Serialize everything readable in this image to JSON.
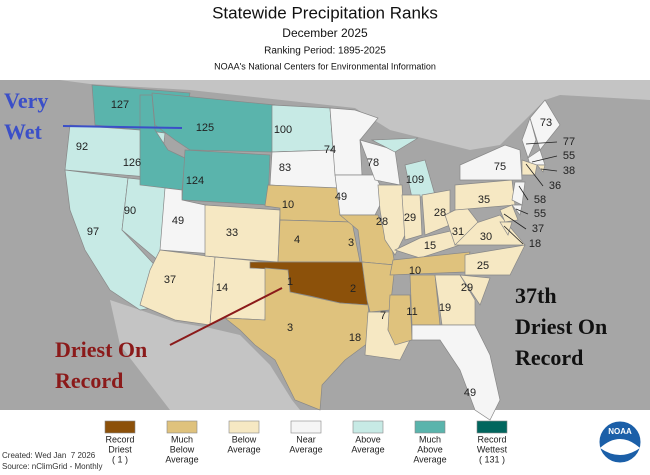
{
  "header": {
    "title": "Statewide Precipitation Ranks",
    "subtitle": "December 2025",
    "period": "Ranking Period: 1895-2025",
    "source": "NOAA's National Centers for Environmental Information"
  },
  "states": [
    {
      "rank": 127,
      "color": "#5ab4ac"
    },
    {
      "rank": 92,
      "color": "#c7eae5"
    },
    {
      "rank": 97,
      "color": "#c7eae5"
    },
    {
      "rank": 90,
      "color": "#c7eae5"
    },
    {
      "rank": 126,
      "color": "#5ab4ac"
    },
    {
      "rank": 125,
      "color": "#5ab4ac"
    },
    {
      "rank": 124,
      "color": "#5ab4ac"
    },
    {
      "rank": 49,
      "color": "#f5f5f5"
    },
    {
      "rank": 37,
      "color": "#f6e8c3"
    },
    {
      "rank": 33,
      "color": "#f6e8c3"
    },
    {
      "rank": 14,
      "color": "#f6e8c3"
    },
    {
      "rank": 100,
      "color": "#c7eae5"
    },
    {
      "rank": 83,
      "color": "#f5f5f5"
    },
    {
      "rank": 10,
      "color": "#dfc27d"
    },
    {
      "rank": 4,
      "color": "#dfc27d"
    },
    {
      "rank": 1,
      "color": "#8c510a"
    },
    {
      "rank": 3,
      "color": "#dfc27d"
    },
    {
      "rank": 74,
      "color": "#f5f5f5"
    },
    {
      "rank": 49,
      "color": "#f5f5f5"
    },
    {
      "rank": 3,
      "color": "#dfc27d"
    },
    {
      "rank": 2,
      "color": "#dfc27d"
    },
    {
      "rank": 18,
      "color": "#f6e8c3"
    },
    {
      "rank": 78,
      "color": "#f5f5f5"
    },
    {
      "rank": 28,
      "color": "#f6e8c3"
    },
    {
      "rank": 7,
      "color": "#dfc27d"
    },
    {
      "rank": 109,
      "color": "#c7eae5"
    },
    {
      "rank": 29,
      "color": "#f6e8c3"
    },
    {
      "rank": 15,
      "color": "#f6e8c3"
    },
    {
      "rank": 10,
      "color": "#dfc27d"
    },
    {
      "rank": 11,
      "color": "#dfc27d"
    },
    {
      "rank": 28,
      "color": "#f6e8c3"
    },
    {
      "rank": 19,
      "color": "#f6e8c3"
    },
    {
      "rank": 49,
      "color": "#f5f5f5"
    },
    {
      "rank": 29,
      "color": "#f6e8c3"
    },
    {
      "rank": 25,
      "color": "#f6e8c3"
    },
    {
      "rank": 30,
      "color": "#f6e8c3"
    },
    {
      "rank": 31,
      "color": "#f6e8c3"
    },
    {
      "rank": 35,
      "color": "#f6e8c3"
    },
    {
      "rank": 75,
      "color": "#f5f5f5"
    },
    {
      "rank": 73,
      "color": "#f5f5f5"
    },
    {
      "rank": 77,
      "color": "#f5f5f5"
    },
    {
      "rank": 55,
      "color": "#f5f5f5"
    },
    {
      "rank": 38,
      "color": "#f6e8c3"
    },
    {
      "rank": 36,
      "color": "#f6e8c3"
    },
    {
      "rank": 58,
      "color": "#f5f5f5"
    },
    {
      "rank": 55,
      "color": "#f5f5f5"
    },
    {
      "rank": 37,
      "color": "#f6e8c3"
    },
    {
      "rank": 18,
      "color": "#f6e8c3"
    }
  ],
  "annotations": [
    {
      "lines": [
        "Very",
        "Wet"
      ],
      "color": "#3b4fc8"
    },
    {
      "lines": [
        "37th",
        "Driest On",
        "Record"
      ],
      "color": "#111111"
    },
    {
      "lines": [
        "Driest On",
        "Record"
      ],
      "color": "#8b1a1a"
    }
  ],
  "legend": [
    {
      "lines": [
        "Record",
        "Driest",
        "( 1 )"
      ],
      "color": "#8c510a"
    },
    {
      "lines": [
        "Much",
        "Below",
        "Average"
      ],
      "color": "#dfc27d"
    },
    {
      "lines": [
        "Below",
        "Average"
      ],
      "color": "#f6e8c3"
    },
    {
      "lines": [
        "Near",
        "Average"
      ],
      "color": "#f5f5f5"
    },
    {
      "lines": [
        "Above",
        "Average"
      ],
      "color": "#c7eae5"
    },
    {
      "lines": [
        "Much",
        "Above",
        "Average"
      ],
      "color": "#5ab4ac"
    },
    {
      "lines": [
        "Record",
        "Wettest",
        "( 131 )"
      ],
      "color": "#01665e"
    }
  ],
  "footer": {
    "created": "Created: Wed Jan  7 2026",
    "source": "Source: nClimGrid - Monthly"
  },
  "logo": "NOAA"
}
